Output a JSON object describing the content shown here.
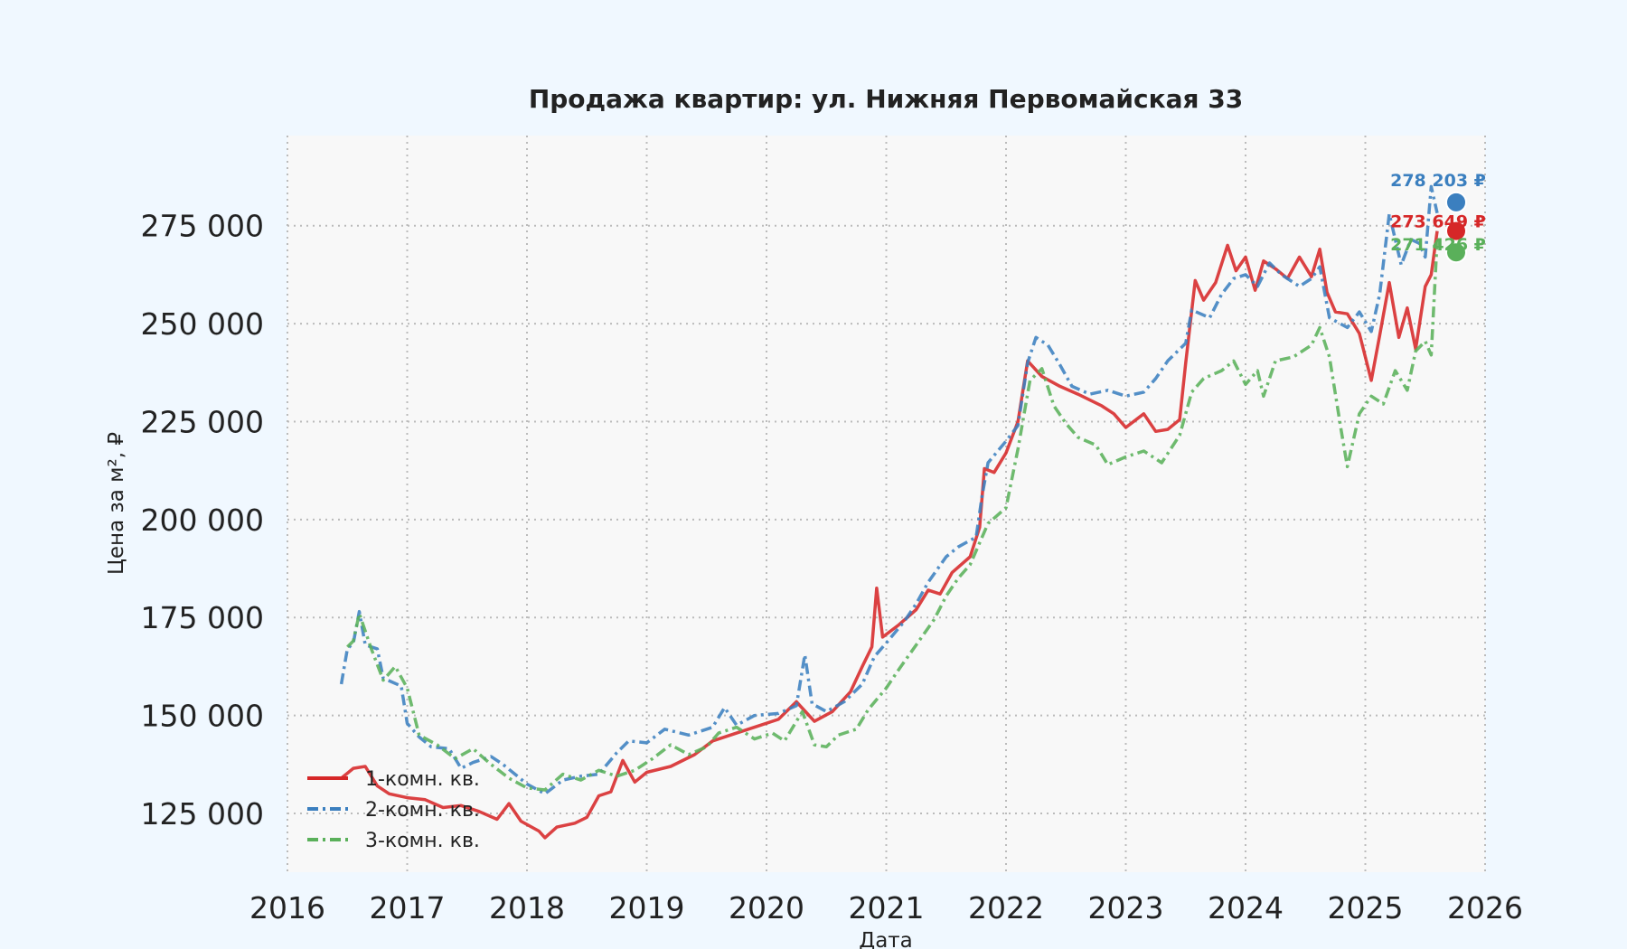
{
  "chart_data": {
    "type": "line",
    "title": "Продажа квартир: ул. Нижняя Первомайская 33",
    "xlabel": "Дата",
    "ylabel": "Цена за м², ₽",
    "xlim": [
      2016,
      2026
    ],
    "ylim": [
      110000,
      298000
    ],
    "x_ticks": [
      "2016",
      "2017",
      "2018",
      "2019",
      "2020",
      "2021",
      "2022",
      "2023",
      "2024",
      "2025",
      "2026"
    ],
    "y_ticks": [
      {
        "value": 125000,
        "label": "125 000"
      },
      {
        "value": 150000,
        "label": "150 000"
      },
      {
        "value": 175000,
        "label": "175 000"
      },
      {
        "value": 200000,
        "label": "200 000"
      },
      {
        "value": 225000,
        "label": "225 000"
      },
      {
        "value": 250000,
        "label": "250 000"
      },
      {
        "value": 275000,
        "label": "275 000"
      }
    ],
    "grid": true,
    "legend_position": "lower-left",
    "series": [
      {
        "name": "1-комн. кв.",
        "color": "#d62728",
        "dash": "solid",
        "end_label": "273 649 ₽",
        "points": [
          [
            2016.45,
            134000
          ],
          [
            2016.55,
            136500
          ],
          [
            2016.65,
            137000
          ],
          [
            2016.75,
            132000
          ],
          [
            2016.85,
            130000
          ],
          [
            2017.0,
            129000
          ],
          [
            2017.15,
            128500
          ],
          [
            2017.3,
            126500
          ],
          [
            2017.45,
            127000
          ],
          [
            2017.6,
            125500
          ],
          [
            2017.75,
            123500
          ],
          [
            2017.85,
            127500
          ],
          [
            2017.95,
            123000
          ],
          [
            2018.1,
            120500
          ],
          [
            2018.15,
            118800
          ],
          [
            2018.25,
            121500
          ],
          [
            2018.4,
            122500
          ],
          [
            2018.5,
            124000
          ],
          [
            2018.6,
            129500
          ],
          [
            2018.7,
            130500
          ],
          [
            2018.8,
            138500
          ],
          [
            2018.9,
            133000
          ],
          [
            2019.0,
            135500
          ],
          [
            2019.2,
            137000
          ],
          [
            2019.4,
            140000
          ],
          [
            2019.55,
            143500
          ],
          [
            2019.75,
            145500
          ],
          [
            2019.9,
            147000
          ],
          [
            2020.1,
            149000
          ],
          [
            2020.25,
            153500
          ],
          [
            2020.4,
            148500
          ],
          [
            2020.55,
            151000
          ],
          [
            2020.7,
            156000
          ],
          [
            2020.8,
            162500
          ],
          [
            2020.88,
            167500
          ],
          [
            2020.92,
            182500
          ],
          [
            2020.97,
            170000
          ],
          [
            2021.1,
            173000
          ],
          [
            2021.25,
            177000
          ],
          [
            2021.35,
            182000
          ],
          [
            2021.45,
            181000
          ],
          [
            2021.55,
            186500
          ],
          [
            2021.7,
            190500
          ],
          [
            2021.78,
            198000
          ],
          [
            2021.82,
            213000
          ],
          [
            2021.9,
            212000
          ],
          [
            2022.0,
            217000
          ],
          [
            2022.1,
            225000
          ],
          [
            2022.18,
            240500
          ],
          [
            2022.3,
            236500
          ],
          [
            2022.45,
            234000
          ],
          [
            2022.6,
            232000
          ],
          [
            2022.8,
            229000
          ],
          [
            2022.9,
            227000
          ],
          [
            2023.0,
            223500
          ],
          [
            2023.15,
            227000
          ],
          [
            2023.25,
            222500
          ],
          [
            2023.35,
            223000
          ],
          [
            2023.45,
            225500
          ],
          [
            2023.5,
            240000
          ],
          [
            2023.58,
            261000
          ],
          [
            2023.65,
            256000
          ],
          [
            2023.75,
            260500
          ],
          [
            2023.85,
            270000
          ],
          [
            2023.92,
            263500
          ],
          [
            2024.0,
            267000
          ],
          [
            2024.08,
            258500
          ],
          [
            2024.15,
            266000
          ],
          [
            2024.25,
            264000
          ],
          [
            2024.35,
            261500
          ],
          [
            2024.45,
            267000
          ],
          [
            2024.55,
            262000
          ],
          [
            2024.62,
            269000
          ],
          [
            2024.68,
            258000
          ],
          [
            2024.75,
            253000
          ],
          [
            2024.85,
            252500
          ],
          [
            2024.95,
            247500
          ],
          [
            2025.05,
            235500
          ],
          [
            2025.12,
            247000
          ],
          [
            2025.2,
            260500
          ],
          [
            2025.28,
            246500
          ],
          [
            2025.35,
            254000
          ],
          [
            2025.42,
            243500
          ],
          [
            2025.5,
            259500
          ],
          [
            2025.55,
            262500
          ],
          [
            2025.6,
            273649
          ]
        ]
      },
      {
        "name": "2-комн. кв.",
        "color": "#3b7fbf",
        "dash": "dash-dot",
        "end_label": "278 203 ₽",
        "points": [
          [
            2016.45,
            158000
          ],
          [
            2016.5,
            167000
          ],
          [
            2016.55,
            168500
          ],
          [
            2016.6,
            176500
          ],
          [
            2016.65,
            168000
          ],
          [
            2016.75,
            167000
          ],
          [
            2016.8,
            159500
          ],
          [
            2016.95,
            157500
          ],
          [
            2017.0,
            148000
          ],
          [
            2017.1,
            144500
          ],
          [
            2017.2,
            142000
          ],
          [
            2017.35,
            141500
          ],
          [
            2017.45,
            136500
          ],
          [
            2017.55,
            138000
          ],
          [
            2017.7,
            139500
          ],
          [
            2017.8,
            137500
          ],
          [
            2017.9,
            135000
          ],
          [
            2018.0,
            132500
          ],
          [
            2018.15,
            130000
          ],
          [
            2018.3,
            133500
          ],
          [
            2018.45,
            134500
          ],
          [
            2018.6,
            135000
          ],
          [
            2018.75,
            140500
          ],
          [
            2018.85,
            143500
          ],
          [
            2019.0,
            143000
          ],
          [
            2019.15,
            146500
          ],
          [
            2019.35,
            145000
          ],
          [
            2019.55,
            147000
          ],
          [
            2019.65,
            152000
          ],
          [
            2019.75,
            147500
          ],
          [
            2019.9,
            150000
          ],
          [
            2020.1,
            150500
          ],
          [
            2020.25,
            152500
          ],
          [
            2020.32,
            165500
          ],
          [
            2020.38,
            153000
          ],
          [
            2020.5,
            151000
          ],
          [
            2020.65,
            153500
          ],
          [
            2020.8,
            158000
          ],
          [
            2020.9,
            165000
          ],
          [
            2021.0,
            168500
          ],
          [
            2021.15,
            174000
          ],
          [
            2021.25,
            178500
          ],
          [
            2021.35,
            184000
          ],
          [
            2021.5,
            190500
          ],
          [
            2021.6,
            193000
          ],
          [
            2021.75,
            195500
          ],
          [
            2021.8,
            206000
          ],
          [
            2021.85,
            214500
          ],
          [
            2022.0,
            220000
          ],
          [
            2022.1,
            224000
          ],
          [
            2022.18,
            240000
          ],
          [
            2022.25,
            246500
          ],
          [
            2022.35,
            244500
          ],
          [
            2022.45,
            239500
          ],
          [
            2022.55,
            234000
          ],
          [
            2022.7,
            232000
          ],
          [
            2022.85,
            233000
          ],
          [
            2023.0,
            231500
          ],
          [
            2023.15,
            232500
          ],
          [
            2023.25,
            236000
          ],
          [
            2023.35,
            240500
          ],
          [
            2023.5,
            245000
          ],
          [
            2023.55,
            253500
          ],
          [
            2023.7,
            251500
          ],
          [
            2023.8,
            257500
          ],
          [
            2023.9,
            261500
          ],
          [
            2024.0,
            262500
          ],
          [
            2024.1,
            259500
          ],
          [
            2024.2,
            265500
          ],
          [
            2024.3,
            262500
          ],
          [
            2024.45,
            259500
          ],
          [
            2024.55,
            261500
          ],
          [
            2024.62,
            264500
          ],
          [
            2024.7,
            251500
          ],
          [
            2024.85,
            249000
          ],
          [
            2024.95,
            253000
          ],
          [
            2025.05,
            248000
          ],
          [
            2025.12,
            257500
          ],
          [
            2025.2,
            278000
          ],
          [
            2025.3,
            265000
          ],
          [
            2025.38,
            271500
          ],
          [
            2025.45,
            270500
          ],
          [
            2025.5,
            267000
          ],
          [
            2025.55,
            285000
          ],
          [
            2025.6,
            278203
          ]
        ]
      },
      {
        "name": "3-комн. кв.",
        "color": "#5ab05a",
        "dash": "dash-dot",
        "end_label": "271 426 ₽",
        "points": [
          [
            2016.5,
            167500
          ],
          [
            2016.55,
            169000
          ],
          [
            2016.6,
            176000
          ],
          [
            2016.7,
            167000
          ],
          [
            2016.8,
            159000
          ],
          [
            2016.9,
            162500
          ],
          [
            2017.0,
            157000
          ],
          [
            2017.1,
            145000
          ],
          [
            2017.25,
            142500
          ],
          [
            2017.4,
            139000
          ],
          [
            2017.55,
            141500
          ],
          [
            2017.7,
            137500
          ],
          [
            2017.85,
            134000
          ],
          [
            2018.0,
            131500
          ],
          [
            2018.15,
            131000
          ],
          [
            2018.3,
            135000
          ],
          [
            2018.45,
            133500
          ],
          [
            2018.6,
            136000
          ],
          [
            2018.75,
            134500
          ],
          [
            2018.9,
            136000
          ],
          [
            2019.05,
            139000
          ],
          [
            2019.2,
            142500
          ],
          [
            2019.35,
            140000
          ],
          [
            2019.5,
            142000
          ],
          [
            2019.6,
            145500
          ],
          [
            2019.75,
            147000
          ],
          [
            2019.9,
            144000
          ],
          [
            2020.05,
            145500
          ],
          [
            2020.15,
            143500
          ],
          [
            2020.3,
            151000
          ],
          [
            2020.4,
            142500
          ],
          [
            2020.5,
            142000
          ],
          [
            2020.6,
            145000
          ],
          [
            2020.75,
            146500
          ],
          [
            2020.85,
            151500
          ],
          [
            2021.0,
            157000
          ],
          [
            2021.1,
            161500
          ],
          [
            2021.25,
            168000
          ],
          [
            2021.4,
            174500
          ],
          [
            2021.5,
            180500
          ],
          [
            2021.6,
            185000
          ],
          [
            2021.7,
            188500
          ],
          [
            2021.85,
            199000
          ],
          [
            2022.0,
            203000
          ],
          [
            2022.1,
            218000
          ],
          [
            2022.2,
            235500
          ],
          [
            2022.3,
            238500
          ],
          [
            2022.4,
            229000
          ],
          [
            2022.5,
            224500
          ],
          [
            2022.6,
            221000
          ],
          [
            2022.75,
            219000
          ],
          [
            2022.85,
            214000
          ],
          [
            2023.0,
            216000
          ],
          [
            2023.15,
            217500
          ],
          [
            2023.3,
            214500
          ],
          [
            2023.45,
            221500
          ],
          [
            2023.55,
            232500
          ],
          [
            2023.65,
            236000
          ],
          [
            2023.8,
            238000
          ],
          [
            2023.9,
            240500
          ],
          [
            2024.0,
            234500
          ],
          [
            2024.1,
            238000
          ],
          [
            2024.15,
            231500
          ],
          [
            2024.25,
            240500
          ],
          [
            2024.4,
            241500
          ],
          [
            2024.55,
            244500
          ],
          [
            2024.62,
            249000
          ],
          [
            2024.7,
            241500
          ],
          [
            2024.8,
            222500
          ],
          [
            2024.85,
            213500
          ],
          [
            2024.95,
            227000
          ],
          [
            2025.05,
            231500
          ],
          [
            2025.15,
            229500
          ],
          [
            2025.25,
            238000
          ],
          [
            2025.35,
            233000
          ],
          [
            2025.42,
            243000
          ],
          [
            2025.5,
            245500
          ],
          [
            2025.55,
            242000
          ],
          [
            2025.6,
            271426
          ]
        ]
      }
    ]
  }
}
